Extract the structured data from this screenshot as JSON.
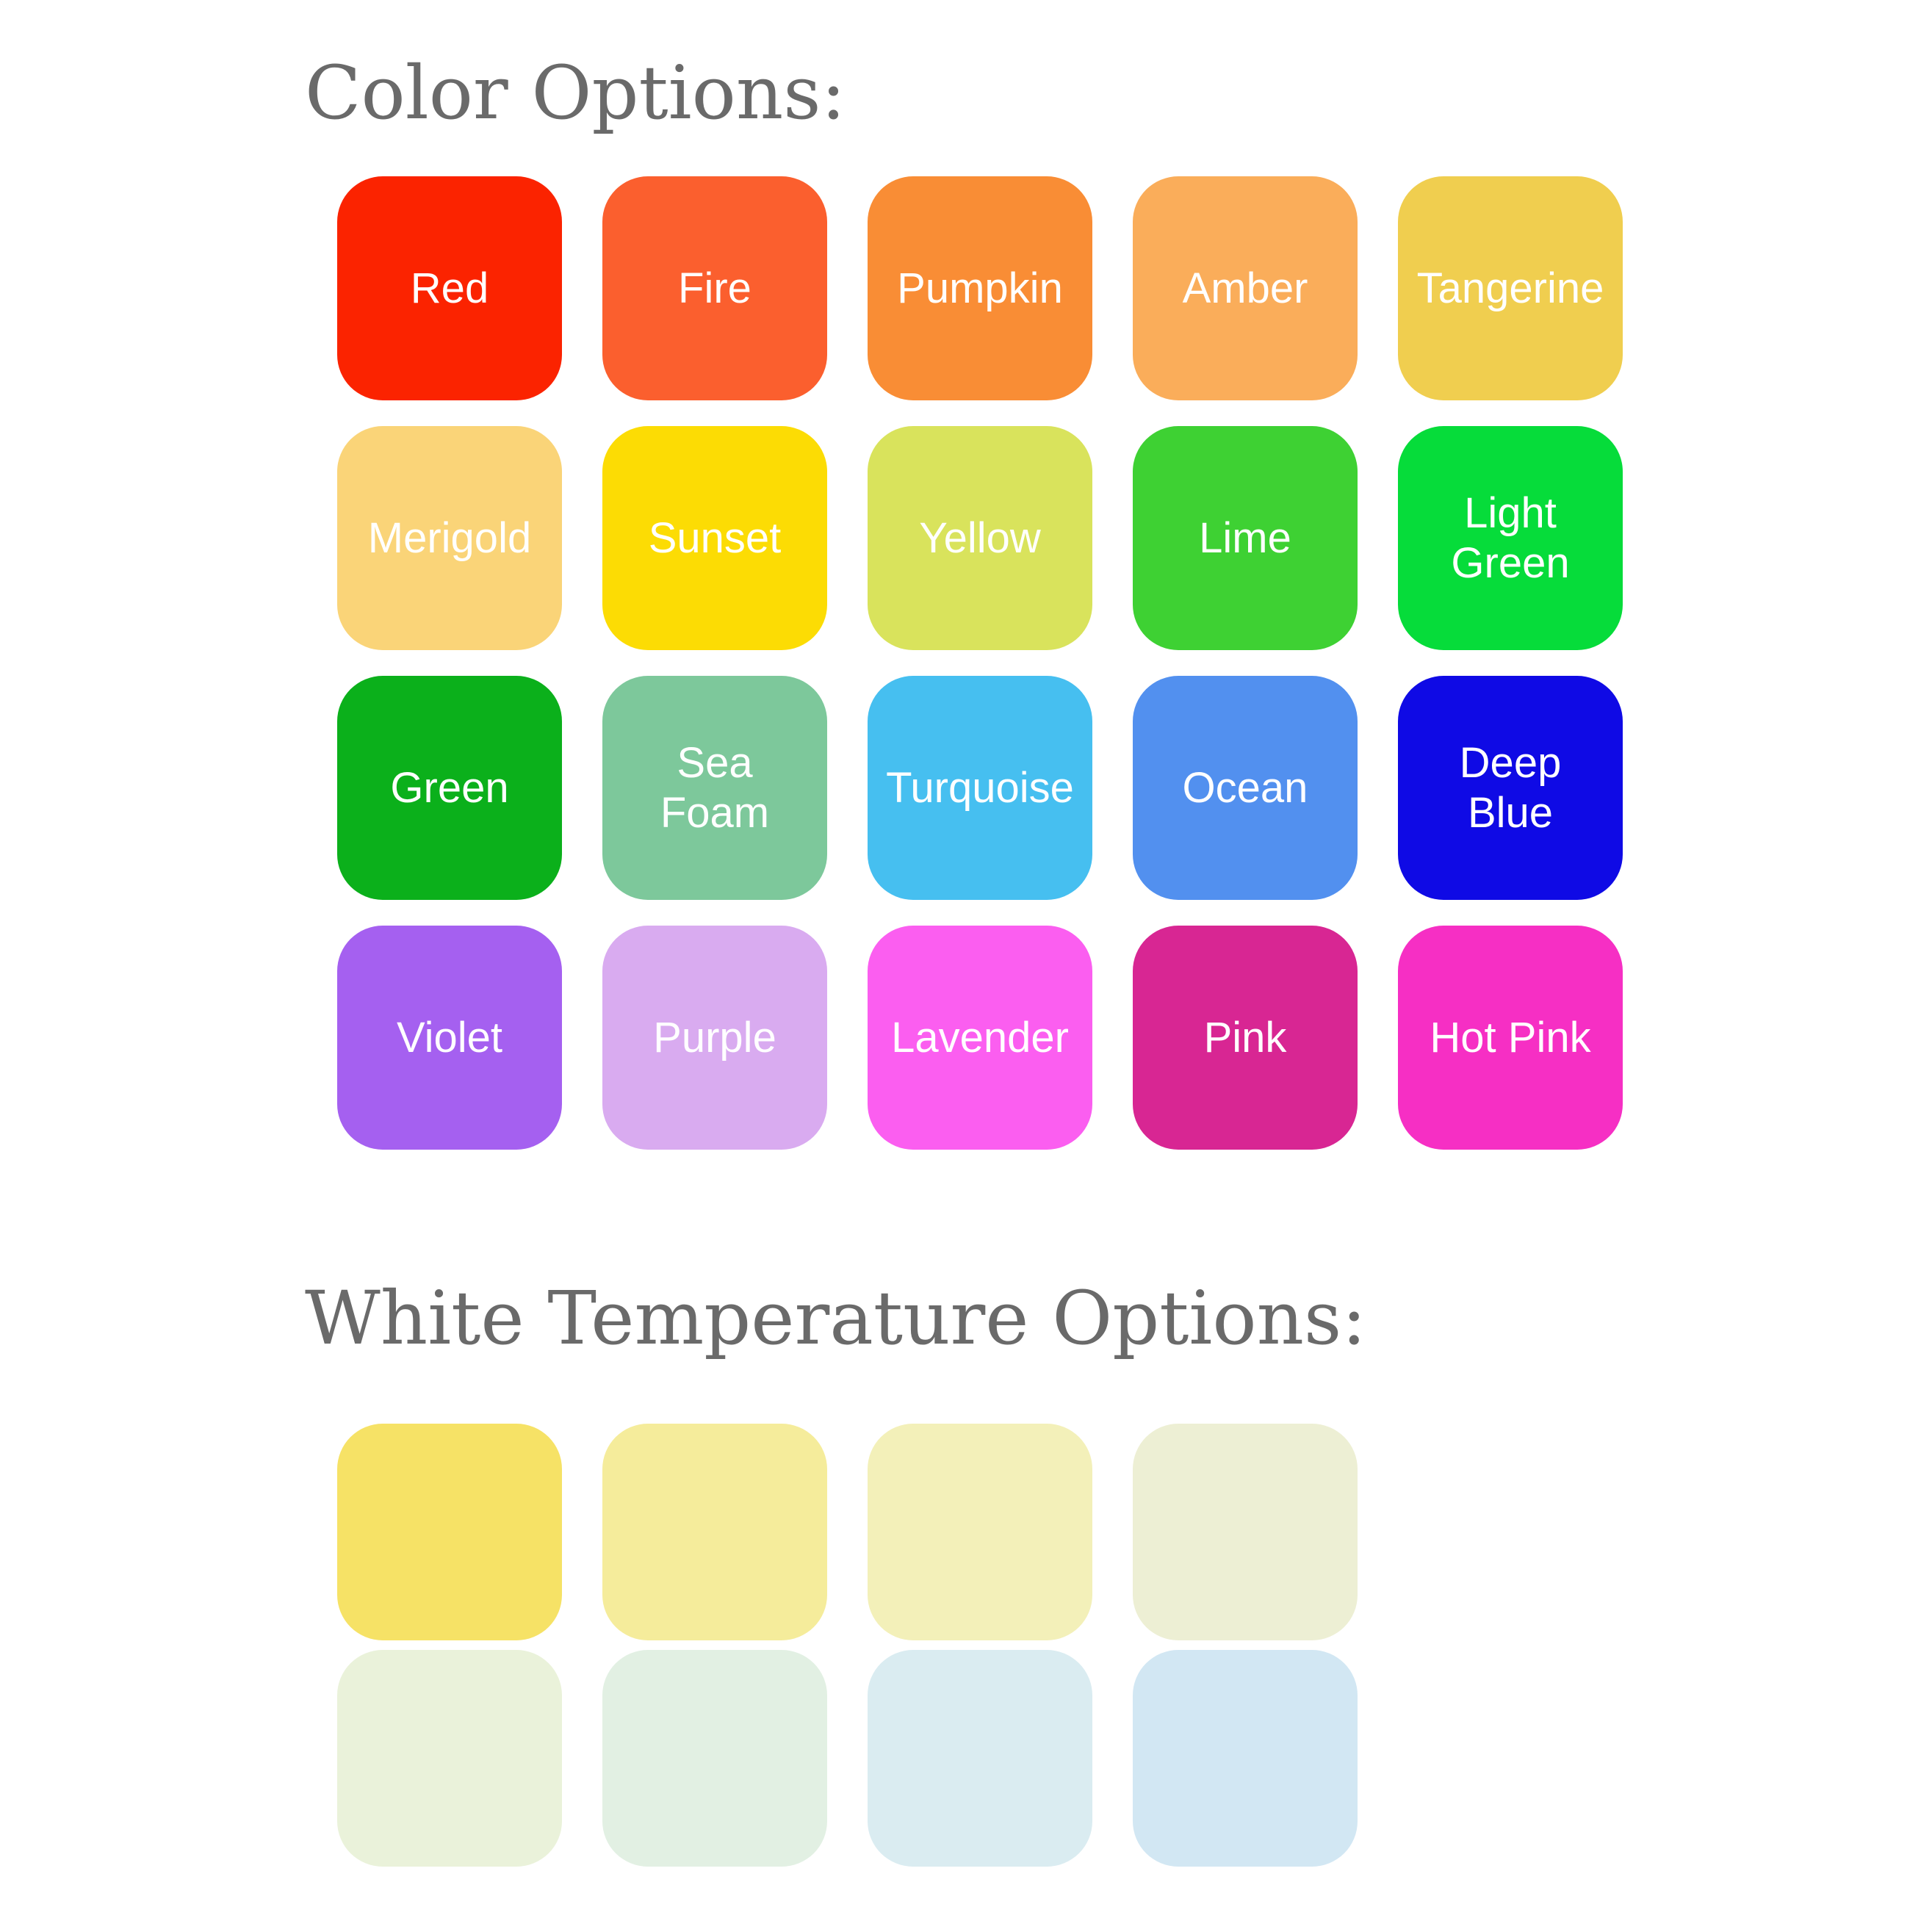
{
  "page_background": "#ffffff",
  "heading_color": "#6a6a6a",
  "label_color": "#ffffff",
  "color_section": {
    "heading": "Color Options:",
    "columns": 5,
    "tiles": [
      {
        "label": "Red",
        "color": "#fb2300"
      },
      {
        "label": "Fire",
        "color": "#fb5f2e"
      },
      {
        "label": "Pumpkin",
        "color": "#f98d35"
      },
      {
        "label": "Amber",
        "color": "#faad5a"
      },
      {
        "label": "Tangerine",
        "color": "#f0ce4f"
      },
      {
        "label": "Merigold",
        "color": "#fad478"
      },
      {
        "label": "Sunset",
        "color": "#fcdc04"
      },
      {
        "label": "Yellow",
        "color": "#d9e35c"
      },
      {
        "label": "Lime",
        "color": "#3ed133"
      },
      {
        "label": "Light\nGreen",
        "color": "#06dc3a"
      },
      {
        "label": "Green",
        "color": "#0bb01b"
      },
      {
        "label": "Sea\nFoam",
        "color": "#7dc89b"
      },
      {
        "label": "Turquoise",
        "color": "#46bff0"
      },
      {
        "label": "Ocean",
        "color": "#5290ef"
      },
      {
        "label": "Deep\nBlue",
        "color": "#0f0ae5"
      },
      {
        "label": "Violet",
        "color": "#a560f0"
      },
      {
        "label": "Purple",
        "color": "#d9abf0"
      },
      {
        "label": "Lavender",
        "color": "#fb5ef0"
      },
      {
        "label": "Pink",
        "color": "#d82693"
      },
      {
        "label": "Hot Pink",
        "color": "#f62fc4"
      }
    ]
  },
  "white_section": {
    "heading": "White Temperature Options:",
    "columns": 4,
    "tiles": [
      {
        "label": "",
        "color": "#f6e266"
      },
      {
        "label": "",
        "color": "#f5ec9b"
      },
      {
        "label": "",
        "color": "#f3f0b9"
      },
      {
        "label": "",
        "color": "#edefd4"
      },
      {
        "label": "",
        "color": "#eaf2da"
      },
      {
        "label": "",
        "color": "#e2f0e3"
      },
      {
        "label": "",
        "color": "#daecf1"
      },
      {
        "label": "",
        "color": "#d2e7f3"
      }
    ]
  }
}
